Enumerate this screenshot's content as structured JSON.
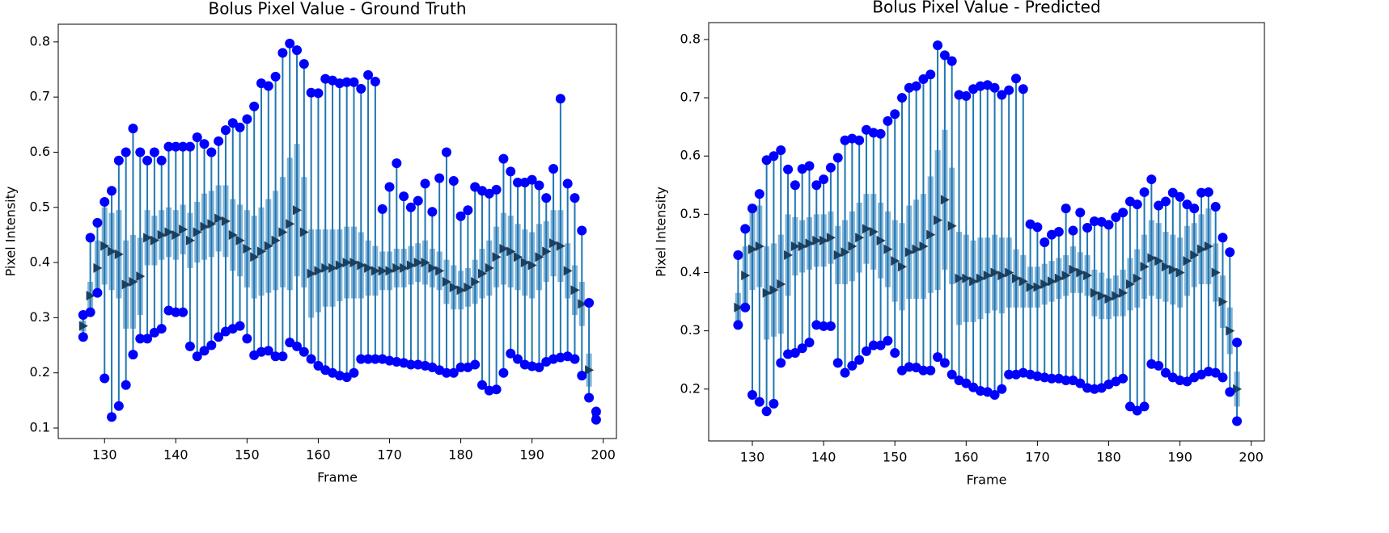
{
  "chart_data": [
    {
      "type": "stem",
      "title": "Bolus Pixel Value - Ground Truth",
      "x_label": "Frame",
      "y_label": "Pixel Intensity",
      "point_color": "#0000ff",
      "line_color": "#1f77b4",
      "mean_color": "#1c3f5e",
      "xlim": [
        123.5,
        201.85
      ],
      "ylim": [
        0.081,
        0.832
      ],
      "xticks": [
        130,
        140,
        150,
        160,
        170,
        180,
        190,
        200
      ],
      "yticks": [
        0.1,
        0.2,
        0.3,
        0.4,
        0.5,
        0.6,
        0.7,
        0.8
      ],
      "x": [
        127,
        128,
        129,
        130,
        131,
        132,
        133,
        134,
        135,
        136,
        137,
        138,
        139,
        140,
        141,
        142,
        143,
        144,
        145,
        146,
        147,
        148,
        149,
        150,
        151,
        152,
        153,
        154,
        155,
        156,
        157,
        158,
        159,
        160,
        161,
        162,
        163,
        164,
        165,
        166,
        167,
        168,
        169,
        170,
        171,
        172,
        173,
        174,
        175,
        176,
        177,
        178,
        179,
        180,
        181,
        182,
        183,
        184,
        185,
        186,
        187,
        188,
        189,
        190,
        191,
        192,
        193,
        194,
        195,
        196,
        197,
        198,
        199
      ],
      "max": [
        0.305,
        0.445,
        0.472,
        0.51,
        0.53,
        0.585,
        0.6,
        0.643,
        0.6,
        0.585,
        0.6,
        0.585,
        0.61,
        0.61,
        0.61,
        0.61,
        0.627,
        0.615,
        0.6,
        0.62,
        0.64,
        0.653,
        0.645,
        0.66,
        0.683,
        0.725,
        0.72,
        0.737,
        0.78,
        0.797,
        0.785,
        0.76,
        0.708,
        0.707,
        0.733,
        0.73,
        0.725,
        0.727,
        0.727,
        0.715,
        0.74,
        0.728,
        0.497,
        0.537,
        0.58,
        0.52,
        0.5,
        0.512,
        0.543,
        0.492,
        0.553,
        0.6,
        0.548,
        0.484,
        0.495,
        0.537,
        0.53,
        0.525,
        0.532,
        0.588,
        0.565,
        0.545,
        0.545,
        0.55,
        0.54,
        0.517,
        0.57,
        0.697,
        0.543,
        0.517,
        0.458,
        0.327,
        0.13
      ],
      "min": [
        0.265,
        0.31,
        0.345,
        0.19,
        0.12,
        0.14,
        0.178,
        0.233,
        0.262,
        0.262,
        0.273,
        0.28,
        0.313,
        0.31,
        0.31,
        0.248,
        0.23,
        0.24,
        0.25,
        0.265,
        0.275,
        0.28,
        0.285,
        0.262,
        0.232,
        0.238,
        0.24,
        0.23,
        0.23,
        0.255,
        0.248,
        0.238,
        0.225,
        0.213,
        0.205,
        0.2,
        0.195,
        0.192,
        0.2,
        0.225,
        0.225,
        0.225,
        0.225,
        0.222,
        0.22,
        0.218,
        0.215,
        0.215,
        0.213,
        0.21,
        0.205,
        0.2,
        0.2,
        0.21,
        0.21,
        0.215,
        0.178,
        0.168,
        0.17,
        0.2,
        0.235,
        0.225,
        0.215,
        0.212,
        0.21,
        0.22,
        0.225,
        0.228,
        0.23,
        0.225,
        0.195,
        0.155,
        0.115
      ],
      "mean": [
        0.285,
        0.34,
        0.39,
        0.43,
        0.42,
        0.415,
        0.36,
        0.365,
        0.375,
        0.445,
        0.44,
        0.45,
        0.455,
        0.45,
        0.46,
        0.44,
        0.455,
        0.465,
        0.47,
        0.48,
        0.475,
        0.45,
        0.44,
        0.425,
        0.41,
        0.42,
        0.43,
        0.44,
        0.455,
        0.47,
        0.495,
        0.455,
        0.38,
        0.385,
        0.39,
        0.39,
        0.395,
        0.4,
        0.4,
        0.395,
        0.39,
        0.385,
        0.385,
        0.385,
        0.39,
        0.39,
        0.395,
        0.4,
        0.4,
        0.39,
        0.385,
        0.365,
        0.355,
        0.35,
        0.355,
        0.365,
        0.38,
        0.39,
        0.41,
        0.425,
        0.42,
        0.41,
        0.4,
        0.395,
        0.41,
        0.42,
        0.435,
        0.43,
        0.385,
        0.35,
        0.325,
        0.205,
        0.125
      ],
      "std": [
        0.01,
        0.025,
        0.05,
        0.07,
        0.07,
        0.08,
        0.08,
        0.085,
        0.07,
        0.05,
        0.045,
        0.045,
        0.045,
        0.045,
        0.045,
        0.05,
        0.055,
        0.06,
        0.06,
        0.06,
        0.065,
        0.065,
        0.065,
        0.07,
        0.075,
        0.08,
        0.085,
        0.09,
        0.1,
        0.12,
        0.12,
        0.1,
        0.08,
        0.075,
        0.07,
        0.07,
        0.065,
        0.065,
        0.065,
        0.06,
        0.05,
        0.045,
        0.035,
        0.035,
        0.035,
        0.035,
        0.035,
        0.035,
        0.04,
        0.035,
        0.035,
        0.04,
        0.04,
        0.035,
        0.035,
        0.04,
        0.045,
        0.05,
        0.055,
        0.065,
        0.065,
        0.06,
        0.06,
        0.06,
        0.06,
        0.055,
        0.06,
        0.065,
        0.05,
        0.045,
        0.04,
        0.03,
        0.005
      ]
    },
    {
      "type": "stem",
      "title": "Bolus Pixel Value - Predicted",
      "x_label": "Frame",
      "y_label": "Pixel Intensity",
      "point_color": "#0000ff",
      "line_color": "#1f77b4",
      "mean_color": "#1c3f5e",
      "xlim": [
        123.87,
        201.85
      ],
      "ylim": [
        0.111,
        0.829
      ],
      "xticks": [
        130,
        140,
        150,
        160,
        170,
        180,
        190,
        200
      ],
      "yticks": [
        0.2,
        0.3,
        0.4,
        0.5,
        0.6,
        0.7,
        0.8
      ],
      "x": [
        128,
        129,
        130,
        131,
        132,
        133,
        134,
        135,
        136,
        137,
        138,
        139,
        140,
        141,
        142,
        143,
        144,
        145,
        146,
        147,
        148,
        149,
        150,
        151,
        152,
        153,
        154,
        155,
        156,
        157,
        158,
        159,
        160,
        161,
        162,
        163,
        164,
        165,
        166,
        167,
        168,
        169,
        170,
        171,
        172,
        173,
        174,
        175,
        176,
        177,
        178,
        179,
        180,
        181,
        182,
        183,
        184,
        185,
        186,
        187,
        188,
        189,
        190,
        191,
        192,
        193,
        194,
        195,
        196,
        197,
        198
      ],
      "max": [
        0.43,
        0.475,
        0.51,
        0.535,
        0.593,
        0.6,
        0.61,
        0.577,
        0.55,
        0.578,
        0.583,
        0.55,
        0.56,
        0.58,
        0.597,
        0.627,
        0.63,
        0.627,
        0.645,
        0.64,
        0.638,
        0.66,
        0.672,
        0.7,
        0.717,
        0.72,
        0.732,
        0.74,
        0.79,
        0.773,
        0.763,
        0.705,
        0.703,
        0.715,
        0.72,
        0.722,
        0.717,
        0.705,
        0.713,
        0.733,
        0.715,
        0.483,
        0.478,
        0.452,
        0.465,
        0.47,
        0.51,
        0.472,
        0.503,
        0.477,
        0.488,
        0.487,
        0.482,
        0.495,
        0.503,
        0.522,
        0.517,
        0.538,
        0.56,
        0.515,
        0.522,
        0.537,
        0.53,
        0.517,
        0.51,
        0.537,
        0.538,
        0.513,
        0.46,
        0.435,
        0.28
      ],
      "min": [
        0.31,
        0.34,
        0.19,
        0.178,
        0.162,
        0.175,
        0.245,
        0.26,
        0.262,
        0.27,
        0.28,
        0.31,
        0.308,
        0.308,
        0.245,
        0.228,
        0.24,
        0.25,
        0.265,
        0.275,
        0.275,
        0.283,
        0.262,
        0.232,
        0.238,
        0.237,
        0.232,
        0.232,
        0.255,
        0.245,
        0.225,
        0.215,
        0.21,
        0.203,
        0.197,
        0.195,
        0.19,
        0.2,
        0.225,
        0.225,
        0.228,
        0.225,
        0.222,
        0.22,
        0.218,
        0.218,
        0.215,
        0.215,
        0.21,
        0.202,
        0.2,
        0.202,
        0.208,
        0.213,
        0.218,
        0.17,
        0.163,
        0.17,
        0.243,
        0.24,
        0.228,
        0.22,
        0.215,
        0.213,
        0.22,
        0.225,
        0.23,
        0.228,
        0.22,
        0.195,
        0.145
      ],
      "mean": [
        0.34,
        0.395,
        0.44,
        0.445,
        0.365,
        0.37,
        0.38,
        0.43,
        0.445,
        0.445,
        0.45,
        0.455,
        0.455,
        0.46,
        0.43,
        0.435,
        0.445,
        0.46,
        0.475,
        0.47,
        0.455,
        0.44,
        0.42,
        0.41,
        0.435,
        0.44,
        0.445,
        0.465,
        0.49,
        0.525,
        0.48,
        0.39,
        0.39,
        0.385,
        0.39,
        0.395,
        0.4,
        0.395,
        0.4,
        0.39,
        0.385,
        0.375,
        0.375,
        0.38,
        0.385,
        0.39,
        0.395,
        0.405,
        0.4,
        0.395,
        0.365,
        0.36,
        0.355,
        0.36,
        0.365,
        0.38,
        0.39,
        0.41,
        0.425,
        0.42,
        0.41,
        0.405,
        0.4,
        0.42,
        0.43,
        0.44,
        0.445,
        0.4,
        0.35,
        0.3,
        0.2
      ],
      "std": [
        0.025,
        0.05,
        0.07,
        0.07,
        0.08,
        0.08,
        0.085,
        0.07,
        0.05,
        0.045,
        0.045,
        0.045,
        0.045,
        0.045,
        0.05,
        0.055,
        0.06,
        0.06,
        0.06,
        0.065,
        0.065,
        0.065,
        0.07,
        0.075,
        0.08,
        0.085,
        0.09,
        0.1,
        0.12,
        0.12,
        0.1,
        0.08,
        0.075,
        0.07,
        0.07,
        0.065,
        0.065,
        0.065,
        0.06,
        0.05,
        0.045,
        0.035,
        0.035,
        0.035,
        0.035,
        0.035,
        0.035,
        0.04,
        0.035,
        0.035,
        0.04,
        0.04,
        0.035,
        0.035,
        0.04,
        0.045,
        0.05,
        0.055,
        0.065,
        0.065,
        0.06,
        0.06,
        0.06,
        0.06,
        0.055,
        0.06,
        0.065,
        0.05,
        0.045,
        0.04,
        0.03
      ]
    }
  ]
}
